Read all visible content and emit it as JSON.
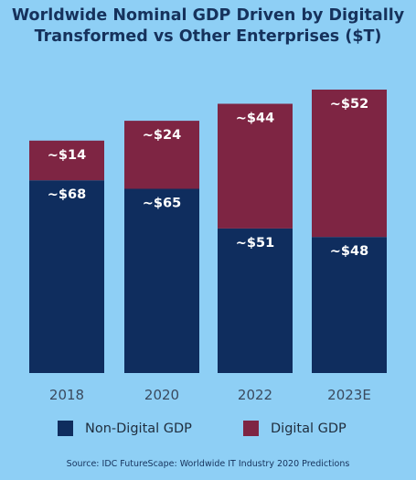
{
  "colors": {
    "background": "#8ecff5",
    "non_digital": "#0f2d5e",
    "digital": "#7e2543",
    "title": "#16325c"
  },
  "chart_data": {
    "type": "bar",
    "stacked": true,
    "title": "Worldwide Nominal GDP Driven by Digitally Transformed vs Other Enterprises ($T)",
    "title_lines": [
      "Worldwide Nominal GDP Driven by Digitally",
      "Transformed vs Other Enterprises ($T)"
    ],
    "categories": [
      "2018",
      "2020",
      "2022",
      "2023E"
    ],
    "series": [
      {
        "name": "Non-Digital GDP",
        "values": [
          68,
          65,
          51,
          48
        ],
        "labels": [
          "~$68",
          "~$65",
          "~$51",
          "~$48"
        ],
        "color": "#0f2d5e"
      },
      {
        "name": "Digital GDP",
        "values": [
          14,
          24,
          44,
          52
        ],
        "labels": [
          "~$14",
          "~$24",
          "~$44",
          "~$52"
        ],
        "color": "#7e2543"
      }
    ],
    "ylim": [
      0,
      100
    ],
    "grid": false,
    "legend_placement": "bottom"
  },
  "legend": {
    "non_digital_label": "Non-Digital GDP",
    "digital_label": "Digital GDP"
  },
  "source": "Source: IDC FutureScape: Worldwide IT Industry 2020 Predictions"
}
